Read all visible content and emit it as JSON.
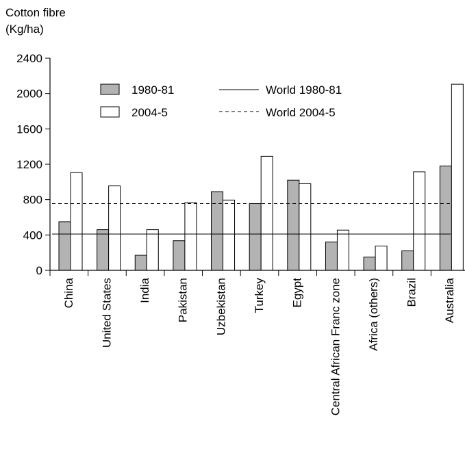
{
  "chart_data": {
    "type": "bar",
    "ylabel_line1": "Cotton fibre",
    "ylabel_line2": "(Kg/ha)",
    "ylim": [
      0,
      2400
    ],
    "yticks": [
      "0",
      "400",
      "800",
      "1200",
      "1600",
      "2000",
      "2400"
    ],
    "categories": [
      "China",
      "United States",
      "India",
      "Pakistan",
      "Uzbekistan",
      "Turkey",
      "Egypt",
      "Central African Franc zone",
      "Africa (others)",
      "Brazil",
      "Australia"
    ],
    "series": [
      {
        "name": "1980-81",
        "fill": "#b3b3b3",
        "values": [
          550,
          460,
          170,
          335,
          890,
          755,
          1020,
          320,
          150,
          220,
          1180
        ]
      },
      {
        "name": "2004-5",
        "fill": "#ffffff",
        "values": [
          1105,
          955,
          460,
          765,
          795,
          1290,
          980,
          455,
          275,
          1115,
          2105
        ]
      }
    ],
    "reference_lines": [
      {
        "name": "World 1980-81",
        "value": 410,
        "style": "solid"
      },
      {
        "name": "World 2004-5",
        "value": 755,
        "style": "dashed"
      }
    ],
    "grid": false,
    "legend_position": "top-left inside"
  }
}
